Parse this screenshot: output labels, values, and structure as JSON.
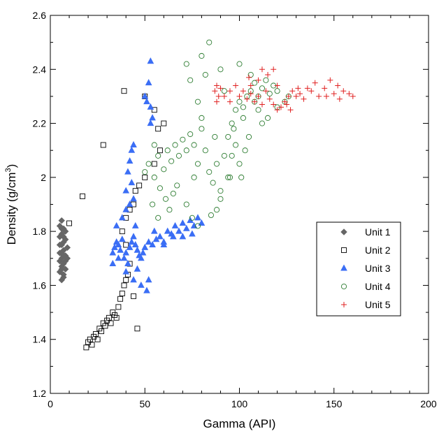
{
  "chart_data": {
    "type": "scatter",
    "xlabel": "Gamma (API)",
    "ylabel_main": "Density (g/cm",
    "ylabel_sup": "3",
    "ylabel_close": ")",
    "xlim": [
      0,
      200
    ],
    "ylim": [
      1.2,
      2.6
    ],
    "x_ticks": [
      0,
      50,
      100,
      150,
      200
    ],
    "x_tick_labels": [
      "0",
      "50",
      "100",
      "150",
      "200"
    ],
    "y_ticks": [
      1.2,
      1.4,
      1.6,
      1.8,
      2.0,
      2.2,
      2.4,
      2.6
    ],
    "y_tick_labels": [
      "1.2",
      "1.4",
      "1.6",
      "1.8",
      "2",
      "2.2",
      "2.4",
      "2.6"
    ],
    "grid": false,
    "legend_position": "right",
    "series": [
      {
        "name": "Unit 1",
        "marker": "diamond",
        "color": "#666666",
        "points": [
          [
            5,
            1.82
          ],
          [
            6,
            1.84
          ],
          [
            7,
            1.81
          ],
          [
            5,
            1.78
          ],
          [
            6,
            1.79
          ],
          [
            8,
            1.77
          ],
          [
            6,
            1.75
          ],
          [
            7,
            1.73
          ],
          [
            5,
            1.72
          ],
          [
            6,
            1.7
          ],
          [
            8,
            1.71
          ],
          [
            7,
            1.68
          ],
          [
            6,
            1.66
          ],
          [
            5,
            1.65
          ],
          [
            7,
            1.64
          ],
          [
            6,
            1.67
          ],
          [
            8,
            1.69
          ],
          [
            9,
            1.74
          ],
          [
            7,
            1.76
          ],
          [
            5,
            1.69
          ],
          [
            6,
            1.72
          ],
          [
            7,
            1.78
          ],
          [
            8,
            1.8
          ],
          [
            9,
            1.7
          ],
          [
            6,
            1.62
          ],
          [
            7,
            1.63
          ],
          [
            5,
            1.75
          ],
          [
            8,
            1.66
          ],
          [
            6,
            1.81
          ],
          [
            7,
            1.71
          ]
        ]
      },
      {
        "name": "Unit 2",
        "marker": "square",
        "color": "#000000",
        "points": [
          [
            19,
            1.37
          ],
          [
            20,
            1.39
          ],
          [
            21,
            1.4
          ],
          [
            22,
            1.38
          ],
          [
            23,
            1.41
          ],
          [
            24,
            1.42
          ],
          [
            25,
            1.4
          ],
          [
            26,
            1.44
          ],
          [
            27,
            1.43
          ],
          [
            28,
            1.46
          ],
          [
            29,
            1.45
          ],
          [
            30,
            1.47
          ],
          [
            31,
            1.48
          ],
          [
            32,
            1.46
          ],
          [
            33,
            1.5
          ],
          [
            34,
            1.49
          ],
          [
            35,
            1.48
          ],
          [
            36,
            1.52
          ],
          [
            37,
            1.55
          ],
          [
            38,
            1.57
          ],
          [
            39,
            1.6
          ],
          [
            40,
            1.62
          ],
          [
            41,
            1.64
          ],
          [
            46,
            1.44
          ],
          [
            44,
            1.56
          ],
          [
            42,
            1.68
          ],
          [
            40,
            1.75
          ],
          [
            38,
            1.8
          ],
          [
            40,
            1.85
          ],
          [
            42,
            1.88
          ],
          [
            44,
            1.9
          ],
          [
            45,
            1.95
          ],
          [
            47,
            1.97
          ],
          [
            50,
            2.0
          ],
          [
            55,
            2.05
          ],
          [
            58,
            2.1
          ],
          [
            60,
            2.2
          ],
          [
            57,
            2.18
          ],
          [
            55,
            2.25
          ],
          [
            17,
            1.93
          ],
          [
            28,
            2.12
          ],
          [
            39,
            2.32
          ],
          [
            10,
            1.83
          ],
          [
            50,
            2.3
          ]
        ]
      },
      {
        "name": "Unit 3",
        "marker": "triangle",
        "color": "#3b6ef5",
        "points": [
          [
            33,
            1.72
          ],
          [
            34,
            1.74
          ],
          [
            35,
            1.76
          ],
          [
            36,
            1.75
          ],
          [
            37,
            1.73
          ],
          [
            38,
            1.77
          ],
          [
            39,
            1.7
          ],
          [
            40,
            1.72
          ],
          [
            41,
            1.68
          ],
          [
            42,
            1.74
          ],
          [
            43,
            1.76
          ],
          [
            44,
            1.78
          ],
          [
            45,
            1.75
          ],
          [
            46,
            1.73
          ],
          [
            47,
            1.71
          ],
          [
            48,
            1.7
          ],
          [
            49,
            1.72
          ],
          [
            50,
            1.74
          ],
          [
            52,
            1.76
          ],
          [
            54,
            1.75
          ],
          [
            56,
            1.77
          ],
          [
            58,
            1.78
          ],
          [
            60,
            1.76
          ],
          [
            62,
            1.8
          ],
          [
            64,
            1.79
          ],
          [
            66,
            1.82
          ],
          [
            68,
            1.8
          ],
          [
            70,
            1.83
          ],
          [
            72,
            1.81
          ],
          [
            74,
            1.84
          ],
          [
            76,
            1.82
          ],
          [
            78,
            1.85
          ],
          [
            80,
            1.83
          ],
          [
            35,
            1.82
          ],
          [
            38,
            1.85
          ],
          [
            40,
            1.88
          ],
          [
            42,
            1.9
          ],
          [
            44,
            1.92
          ],
          [
            40,
            1.95
          ],
          [
            43,
            1.98
          ],
          [
            41,
            2.02
          ],
          [
            42,
            2.06
          ],
          [
            43,
            2.1
          ],
          [
            44,
            2.12
          ],
          [
            40,
            1.65
          ],
          [
            44,
            1.62
          ],
          [
            48,
            1.6
          ],
          [
            51,
            1.58
          ],
          [
            52,
            1.62
          ],
          [
            46,
            1.66
          ],
          [
            53,
            2.2
          ],
          [
            54,
            2.22
          ],
          [
            53,
            2.26
          ],
          [
            52,
            2.35
          ],
          [
            53,
            2.43
          ],
          [
            50,
            2.3
          ],
          [
            51,
            2.28
          ],
          [
            60,
            1.75
          ],
          [
            65,
            1.78
          ],
          [
            70,
            1.78
          ],
          [
            75,
            1.79
          ],
          [
            33,
            1.68
          ],
          [
            36,
            1.7
          ],
          [
            45,
            1.82
          ],
          [
            55,
            1.8
          ]
        ]
      },
      {
        "name": "Unit 4",
        "marker": "circle",
        "color": "#2e7d32",
        "points": [
          [
            50,
            2.02
          ],
          [
            52,
            2.05
          ],
          [
            55,
            2.0
          ],
          [
            57,
            2.08
          ],
          [
            60,
            2.03
          ],
          [
            62,
            2.1
          ],
          [
            64,
            2.06
          ],
          [
            66,
            2.12
          ],
          [
            68,
            2.08
          ],
          [
            70,
            2.14
          ],
          [
            72,
            2.1
          ],
          [
            74,
            2.16
          ],
          [
            76,
            2.12
          ],
          [
            78,
            2.05
          ],
          [
            80,
            2.18
          ],
          [
            82,
            2.1
          ],
          [
            84,
            2.02
          ],
          [
            86,
            1.98
          ],
          [
            88,
            2.05
          ],
          [
            90,
            1.95
          ],
          [
            92,
            2.08
          ],
          [
            94,
            2.15
          ],
          [
            96,
            2.2
          ],
          [
            98,
            2.25
          ],
          [
            100,
            2.28
          ],
          [
            102,
            2.22
          ],
          [
            104,
            2.3
          ],
          [
            106,
            2.32
          ],
          [
            108,
            2.35
          ],
          [
            110,
            2.3
          ],
          [
            112,
            2.33
          ],
          [
            114,
            2.36
          ],
          [
            116,
            2.31
          ],
          [
            118,
            2.34
          ],
          [
            120,
            2.32
          ],
          [
            58,
            1.96
          ],
          [
            61,
            1.92
          ],
          [
            63,
            1.88
          ],
          [
            65,
            1.94
          ],
          [
            67,
            1.97
          ],
          [
            72,
            1.9
          ],
          [
            75,
            1.85
          ],
          [
            78,
            1.82
          ],
          [
            85,
            1.86
          ],
          [
            88,
            1.88
          ],
          [
            90,
            1.92
          ],
          [
            95,
            2.0
          ],
          [
            100,
            2.05
          ],
          [
            103,
            2.1
          ],
          [
            105,
            2.15
          ],
          [
            98,
            2.12
          ],
          [
            96,
            2.08
          ],
          [
            94,
            2.0
          ],
          [
            80,
            2.22
          ],
          [
            78,
            2.28
          ],
          [
            74,
            2.36
          ],
          [
            72,
            2.42
          ],
          [
            80,
            2.45
          ],
          [
            84,
            2.5
          ],
          [
            90,
            2.4
          ],
          [
            100,
            2.42
          ],
          [
            106,
            2.38
          ],
          [
            102,
            2.26
          ],
          [
            110,
            2.25
          ],
          [
            112,
            2.2
          ],
          [
            115,
            2.22
          ],
          [
            120,
            2.26
          ],
          [
            124,
            2.28
          ],
          [
            126,
            2.3
          ],
          [
            55,
            2.12
          ],
          [
            54,
            1.9
          ],
          [
            57,
            1.85
          ],
          [
            82,
            2.38
          ],
          [
            92,
            2.32
          ],
          [
            97,
            2.18
          ],
          [
            101,
            2.0
          ],
          [
            108,
            2.28
          ],
          [
            87,
            2.15
          ],
          [
            76,
            2.0
          ]
        ]
      },
      {
        "name": "Unit 5",
        "marker": "plus",
        "color": "#e02020",
        "points": [
          [
            87,
            2.32
          ],
          [
            88,
            2.34
          ],
          [
            89,
            2.3
          ],
          [
            90,
            2.33
          ],
          [
            88,
            2.28
          ],
          [
            95,
            2.32
          ],
          [
            98,
            2.34
          ],
          [
            100,
            2.3
          ],
          [
            102,
            2.32
          ],
          [
            104,
            2.29
          ],
          [
            106,
            2.31
          ],
          [
            108,
            2.28
          ],
          [
            110,
            2.3
          ],
          [
            112,
            2.27
          ],
          [
            114,
            2.32
          ],
          [
            116,
            2.29
          ],
          [
            118,
            2.27
          ],
          [
            120,
            2.25
          ],
          [
            122,
            2.26
          ],
          [
            124,
            2.28
          ],
          [
            126,
            2.3
          ],
          [
            128,
            2.32
          ],
          [
            130,
            2.3
          ],
          [
            132,
            2.31
          ],
          [
            134,
            2.29
          ],
          [
            136,
            2.33
          ],
          [
            138,
            2.32
          ],
          [
            140,
            2.35
          ],
          [
            142,
            2.3
          ],
          [
            145,
            2.33
          ],
          [
            148,
            2.36
          ],
          [
            150,
            2.31
          ],
          [
            152,
            2.34
          ],
          [
            155,
            2.32
          ],
          [
            158,
            2.31
          ],
          [
            160,
            2.3
          ],
          [
            105,
            2.37
          ],
          [
            110,
            2.36
          ],
          [
            115,
            2.38
          ],
          [
            120,
            2.34
          ],
          [
            125,
            2.27
          ],
          [
            112,
            2.4
          ],
          [
            118,
            2.4
          ],
          [
            95,
            2.28
          ],
          [
            92,
            2.3
          ],
          [
            127,
            2.25
          ],
          [
            131,
            2.33
          ],
          [
            146,
            2.3
          ],
          [
            153,
            2.29
          ],
          [
            106,
            2.34
          ]
        ]
      }
    ]
  }
}
